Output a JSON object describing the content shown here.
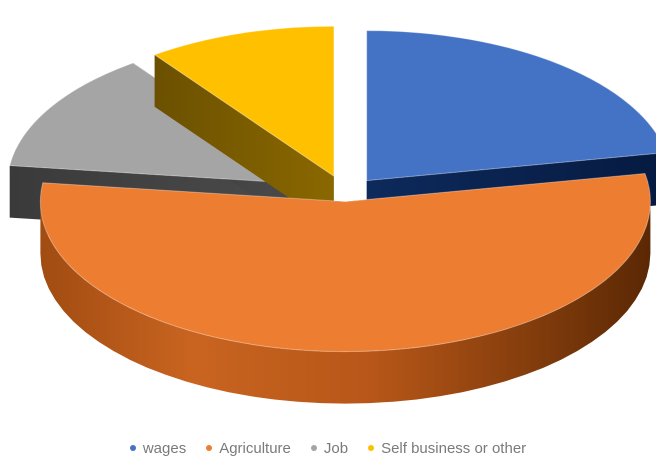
{
  "chart_data": {
    "type": "pie",
    "style": "3d-exploded",
    "categories": [
      "wages",
      "Agriculture",
      "Job",
      "Self business or other"
    ],
    "values": [
      22,
      55,
      13,
      10
    ],
    "colors": [
      "#4472c4",
      "#ed7d31",
      "#a5a5a5",
      "#ffc000"
    ],
    "legend": "bottom"
  }
}
